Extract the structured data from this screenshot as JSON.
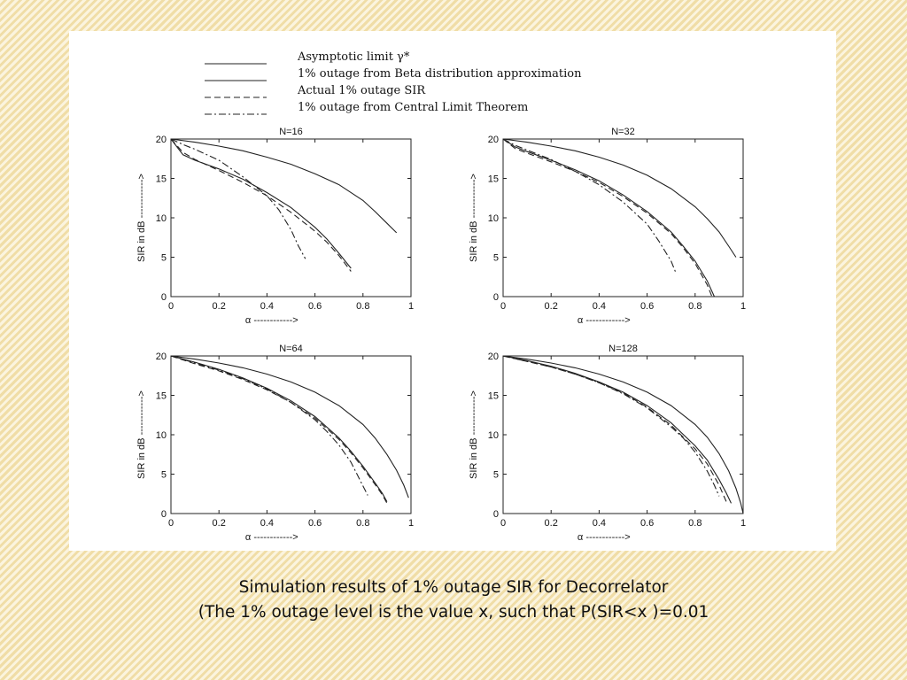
{
  "caption": {
    "line1": "Simulation results of 1% outage SIR for Decorrelator",
    "line2": "(The 1% outage level is the value x, such that P(SIR<x )=0.01"
  },
  "legend": [
    {
      "label": "Asymptotic limit γ*",
      "style": "solid"
    },
    {
      "label": "1% outage from Beta distribution approximation",
      "style": "solid"
    },
    {
      "label": "Actual 1% outage SIR",
      "style": "dashed"
    },
    {
      "label": "1% outage from Central Limit Theorem",
      "style": "dashdot"
    }
  ],
  "chart_data": [
    {
      "type": "line",
      "title": "N=16",
      "xlabel": "α ------------>",
      "ylabel": "SIR in dB ------------>",
      "xlim": [
        0,
        1
      ],
      "ylim": [
        0,
        20
      ],
      "xticks": [
        "0",
        "0.2",
        "0.4",
        "0.6",
        "0.8",
        "1"
      ],
      "yticks": [
        "0",
        "5",
        "10",
        "15",
        "20"
      ],
      "grid": false,
      "series": [
        {
          "style": "solid",
          "x": [
            0,
            0.1,
            0.2,
            0.3,
            0.4,
            0.5,
            0.6,
            0.7,
            0.8,
            0.85,
            0.9,
            0.94
          ],
          "y": [
            20,
            19.6,
            19.1,
            18.5,
            17.7,
            16.8,
            15.6,
            14.2,
            12.2,
            10.8,
            9.3,
            8.1
          ]
        },
        {
          "style": "solid",
          "x": [
            0,
            0.05,
            0.1,
            0.2,
            0.3,
            0.4,
            0.5,
            0.6,
            0.65,
            0.7,
            0.75
          ],
          "y": [
            20,
            18.0,
            17.3,
            16.2,
            14.9,
            13.2,
            11.3,
            8.8,
            7.3,
            5.5,
            3.6
          ]
        },
        {
          "style": "dashed",
          "x": [
            0,
            0.05,
            0.1,
            0.2,
            0.3,
            0.4,
            0.5,
            0.6,
            0.65,
            0.7,
            0.75
          ],
          "y": [
            20,
            18.3,
            17.4,
            16.0,
            14.5,
            12.8,
            10.7,
            8.3,
            6.9,
            5.2,
            3.2
          ]
        },
        {
          "style": "dashdot",
          "x": [
            0,
            0.05,
            0.1,
            0.2,
            0.3,
            0.4,
            0.45,
            0.5,
            0.53,
            0.56
          ],
          "y": [
            20,
            19.3,
            18.7,
            17.3,
            15.2,
            12.8,
            11.0,
            8.5,
            6.5,
            4.8
          ]
        }
      ]
    },
    {
      "type": "line",
      "title": "N=32",
      "xlabel": "α ------------>",
      "ylabel": "SIR in dB ------------>",
      "xlim": [
        0,
        1
      ],
      "ylim": [
        0,
        20
      ],
      "xticks": [
        "0",
        "0.2",
        "0.4",
        "0.6",
        "0.8",
        "1"
      ],
      "yticks": [
        "0",
        "5",
        "10",
        "15",
        "20"
      ],
      "grid": false,
      "series": [
        {
          "style": "solid",
          "x": [
            0,
            0.1,
            0.2,
            0.3,
            0.4,
            0.5,
            0.6,
            0.7,
            0.8,
            0.85,
            0.9,
            0.94,
            0.97
          ],
          "y": [
            20,
            19.6,
            19.1,
            18.5,
            17.7,
            16.7,
            15.4,
            13.7,
            11.4,
            9.9,
            8.2,
            6.4,
            5.0
          ]
        },
        {
          "style": "solid",
          "x": [
            0,
            0.05,
            0.1,
            0.2,
            0.3,
            0.4,
            0.5,
            0.6,
            0.7,
            0.75,
            0.8,
            0.85,
            0.88
          ],
          "y": [
            20,
            19.0,
            18.4,
            17.3,
            16.1,
            14.7,
            12.9,
            10.8,
            8.2,
            6.4,
            4.5,
            2.0,
            0
          ]
        },
        {
          "style": "dashed",
          "x": [
            0,
            0.05,
            0.1,
            0.2,
            0.3,
            0.4,
            0.5,
            0.6,
            0.7,
            0.75,
            0.8,
            0.85,
            0.87
          ],
          "y": [
            20,
            18.8,
            18.2,
            17.1,
            15.9,
            14.5,
            12.7,
            10.6,
            8.0,
            6.2,
            4.2,
            1.5,
            0
          ]
        },
        {
          "style": "dashdot",
          "x": [
            0,
            0.05,
            0.1,
            0.2,
            0.3,
            0.4,
            0.5,
            0.6,
            0.65,
            0.7,
            0.72
          ],
          "y": [
            20,
            19.2,
            18.6,
            17.4,
            15.9,
            14.2,
            12.0,
            9.2,
            7.0,
            4.5,
            3.0
          ]
        }
      ]
    },
    {
      "type": "line",
      "title": "N=64",
      "xlabel": "α ------------>",
      "ylabel": "SIR in dB ------------>",
      "xlim": [
        0,
        1
      ],
      "ylim": [
        0,
        20
      ],
      "xticks": [
        "0",
        "0.2",
        "0.4",
        "0.6",
        "0.8",
        "1"
      ],
      "yticks": [
        "0",
        "5",
        "10",
        "15",
        "20"
      ],
      "grid": false,
      "series": [
        {
          "style": "solid",
          "x": [
            0,
            0.1,
            0.2,
            0.3,
            0.4,
            0.5,
            0.6,
            0.7,
            0.8,
            0.85,
            0.9,
            0.94,
            0.97,
            0.99
          ],
          "y": [
            20,
            19.6,
            19.1,
            18.5,
            17.7,
            16.7,
            15.4,
            13.7,
            11.3,
            9.6,
            7.5,
            5.5,
            3.6,
            2.0
          ]
        },
        {
          "style": "solid",
          "x": [
            0,
            0.1,
            0.2,
            0.3,
            0.4,
            0.5,
            0.6,
            0.7,
            0.75,
            0.8,
            0.85,
            0.88,
            0.9
          ],
          "y": [
            20,
            19.2,
            18.3,
            17.2,
            15.9,
            14.3,
            12.3,
            9.6,
            7.9,
            6.0,
            3.9,
            2.6,
            1.5
          ]
        },
        {
          "style": "dashed",
          "x": [
            0,
            0.1,
            0.2,
            0.3,
            0.4,
            0.5,
            0.6,
            0.7,
            0.75,
            0.8,
            0.85,
            0.88,
            0.9
          ],
          "y": [
            20,
            19.0,
            18.1,
            17.0,
            15.7,
            14.1,
            12.1,
            9.4,
            7.7,
            5.8,
            3.7,
            2.4,
            1.3
          ]
        },
        {
          "style": "dashdot",
          "x": [
            0,
            0.1,
            0.2,
            0.3,
            0.4,
            0.5,
            0.6,
            0.65,
            0.7,
            0.75,
            0.8,
            0.82
          ],
          "y": [
            20,
            19.1,
            18.2,
            17.1,
            15.8,
            14.1,
            11.9,
            10.4,
            8.7,
            6.5,
            3.5,
            2.3
          ]
        }
      ]
    },
    {
      "type": "line",
      "title": "N=128",
      "xlabel": "α ------------>",
      "ylabel": "SIR in dB ------------>",
      "xlim": [
        0,
        1
      ],
      "ylim": [
        0,
        20
      ],
      "xticks": [
        "0",
        "0.2",
        "0.4",
        "0.6",
        "0.8",
        "1"
      ],
      "yticks": [
        "0",
        "5",
        "10",
        "15",
        "20"
      ],
      "grid": false,
      "series": [
        {
          "style": "solid",
          "x": [
            0,
            0.1,
            0.2,
            0.3,
            0.4,
            0.5,
            0.6,
            0.7,
            0.8,
            0.85,
            0.9,
            0.94,
            0.97,
            0.99,
            1.0
          ],
          "y": [
            20,
            19.6,
            19.1,
            18.5,
            17.7,
            16.7,
            15.4,
            13.7,
            11.3,
            9.7,
            7.6,
            5.4,
            3.2,
            1.3,
            0
          ]
        },
        {
          "style": "solid",
          "x": [
            0,
            0.1,
            0.2,
            0.3,
            0.4,
            0.5,
            0.6,
            0.7,
            0.8,
            0.85,
            0.9,
            0.93,
            0.95
          ],
          "y": [
            20,
            19.4,
            18.7,
            17.8,
            16.7,
            15.4,
            13.7,
            11.5,
            8.6,
            6.8,
            4.3,
            2.6,
            1.3
          ]
        },
        {
          "style": "dashed",
          "x": [
            0,
            0.1,
            0.2,
            0.3,
            0.4,
            0.5,
            0.6,
            0.7,
            0.8,
            0.85,
            0.9,
            0.93
          ],
          "y": [
            20,
            19.3,
            18.6,
            17.7,
            16.6,
            15.3,
            13.5,
            11.2,
            8.2,
            6.3,
            3.6,
            1.5
          ]
        },
        {
          "style": "dashdot",
          "x": [
            0,
            0.1,
            0.2,
            0.3,
            0.4,
            0.5,
            0.6,
            0.7,
            0.75,
            0.8,
            0.85,
            0.88,
            0.9
          ],
          "y": [
            20,
            19.3,
            18.6,
            17.7,
            16.6,
            15.2,
            13.4,
            11.0,
            9.6,
            7.8,
            5.4,
            3.6,
            2.2
          ]
        }
      ]
    }
  ]
}
